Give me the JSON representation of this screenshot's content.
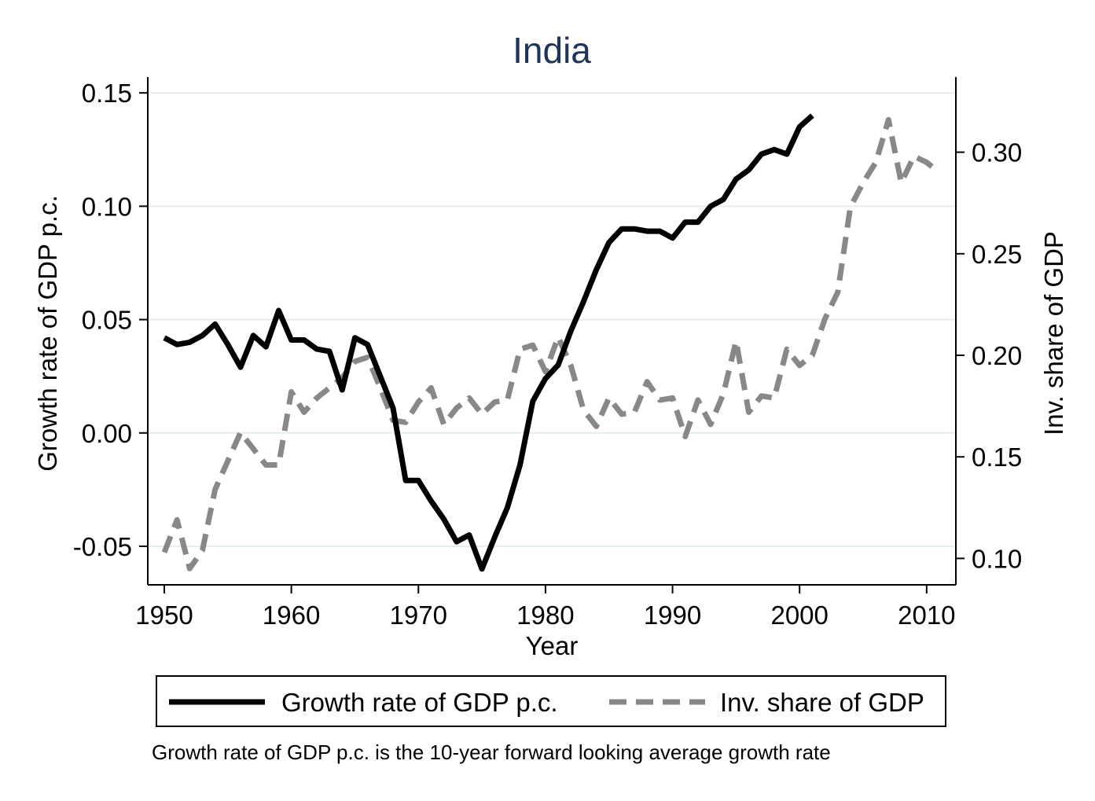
{
  "chart_data": {
    "type": "line",
    "title": "India",
    "xlabel": "Year",
    "ylabel_left": "Growth rate of GDP p.c.",
    "ylabel_right": "Inv. share of GDP",
    "note": "Growth rate of GDP p.c. is the 10-year forward looking average growth rate",
    "xlim": [
      1948.7,
      2012.3
    ],
    "ylim_left": [
      -0.067,
      0.157
    ],
    "ylim_right": [
      0.087,
      0.337
    ],
    "x_ticks": [
      1950,
      1960,
      1970,
      1980,
      1990,
      2000,
      2010
    ],
    "x_tick_labels": [
      "1950",
      "1960",
      "1970",
      "1980",
      "1990",
      "2000",
      "2010"
    ],
    "y_left_ticks": [
      0.15,
      0.1,
      0.05,
      0.0,
      -0.05
    ],
    "y_left_tick_labels": [
      "0.15",
      "0.10",
      "0.05",
      "0.00",
      "-0.05"
    ],
    "y_right_ticks": [
      0.3,
      0.25,
      0.2,
      0.15,
      0.1
    ],
    "y_right_tick_labels": [
      "0.30",
      "0.25",
      "0.20",
      "0.15",
      "0.10"
    ],
    "grid": true,
    "legend_position": "bottom",
    "series": [
      {
        "name": "Growth rate of GDP p.c.",
        "axis": "left",
        "style": "solid",
        "color": "#000000",
        "x": [
          1950,
          1951,
          1952,
          1953,
          1954,
          1955,
          1956,
          1957,
          1958,
          1959,
          1960,
          1961,
          1962,
          1963,
          1964,
          1965,
          1966,
          1967,
          1968,
          1969,
          1970,
          1971,
          1972,
          1973,
          1974,
          1975,
          1976,
          1977,
          1978,
          1979,
          1980,
          1981,
          1982,
          1983,
          1984,
          1985,
          1986,
          1987,
          1988,
          1989,
          1990,
          1991,
          1992,
          1993,
          1994,
          1995,
          1996,
          1997,
          1998,
          1999,
          2000,
          2001
        ],
        "values": [
          0.042,
          0.039,
          0.04,
          0.043,
          0.048,
          0.039,
          0.029,
          0.043,
          0.038,
          0.054,
          0.041,
          0.041,
          0.037,
          0.036,
          0.019,
          0.042,
          0.039,
          0.025,
          0.011,
          -0.021,
          -0.021,
          -0.03,
          -0.038,
          -0.048,
          -0.045,
          -0.06,
          -0.046,
          -0.033,
          -0.014,
          0.014,
          0.024,
          0.03,
          0.045,
          0.058,
          0.072,
          0.084,
          0.09,
          0.09,
          0.089,
          0.089,
          0.086,
          0.093,
          0.093,
          0.1,
          0.103,
          0.112,
          0.116,
          0.123,
          0.125,
          0.123,
          0.135,
          0.14
        ]
      },
      {
        "name": "Inv. share of GDP",
        "axis": "right",
        "style": "dashed",
        "color": "#888888",
        "x": [
          1950,
          1951,
          1952,
          1953,
          1954,
          1955,
          1956,
          1957,
          1958,
          1959,
          1960,
          1961,
          1962,
          1963,
          1964,
          1965,
          1966,
          1967,
          1968,
          1969,
          1970,
          1971,
          1972,
          1973,
          1974,
          1975,
          1976,
          1977,
          1978,
          1979,
          1980,
          1981,
          1982,
          1983,
          1984,
          1985,
          1986,
          1987,
          1988,
          1989,
          1990,
          1991,
          1992,
          1993,
          1994,
          1995,
          1996,
          1997,
          1998,
          1999,
          2000,
          2001,
          2002,
          2003,
          2004,
          2005,
          2006,
          2007,
          2008,
          2009,
          2010,
          2011
        ],
        "values": [
          0.103,
          0.119,
          0.095,
          0.104,
          0.134,
          0.148,
          0.162,
          0.154,
          0.146,
          0.146,
          0.182,
          0.172,
          0.179,
          0.184,
          0.189,
          0.197,
          0.199,
          0.184,
          0.168,
          0.167,
          0.177,
          0.184,
          0.166,
          0.174,
          0.179,
          0.171,
          0.177,
          0.178,
          0.203,
          0.205,
          0.192,
          0.209,
          0.195,
          0.173,
          0.165,
          0.179,
          0.171,
          0.172,
          0.187,
          0.178,
          0.179,
          0.16,
          0.178,
          0.166,
          0.181,
          0.207,
          0.172,
          0.18,
          0.179,
          0.203,
          0.195,
          0.2,
          0.218,
          0.231,
          0.273,
          0.285,
          0.295,
          0.316,
          0.285,
          0.298,
          0.295,
          0.29
        ]
      }
    ]
  }
}
